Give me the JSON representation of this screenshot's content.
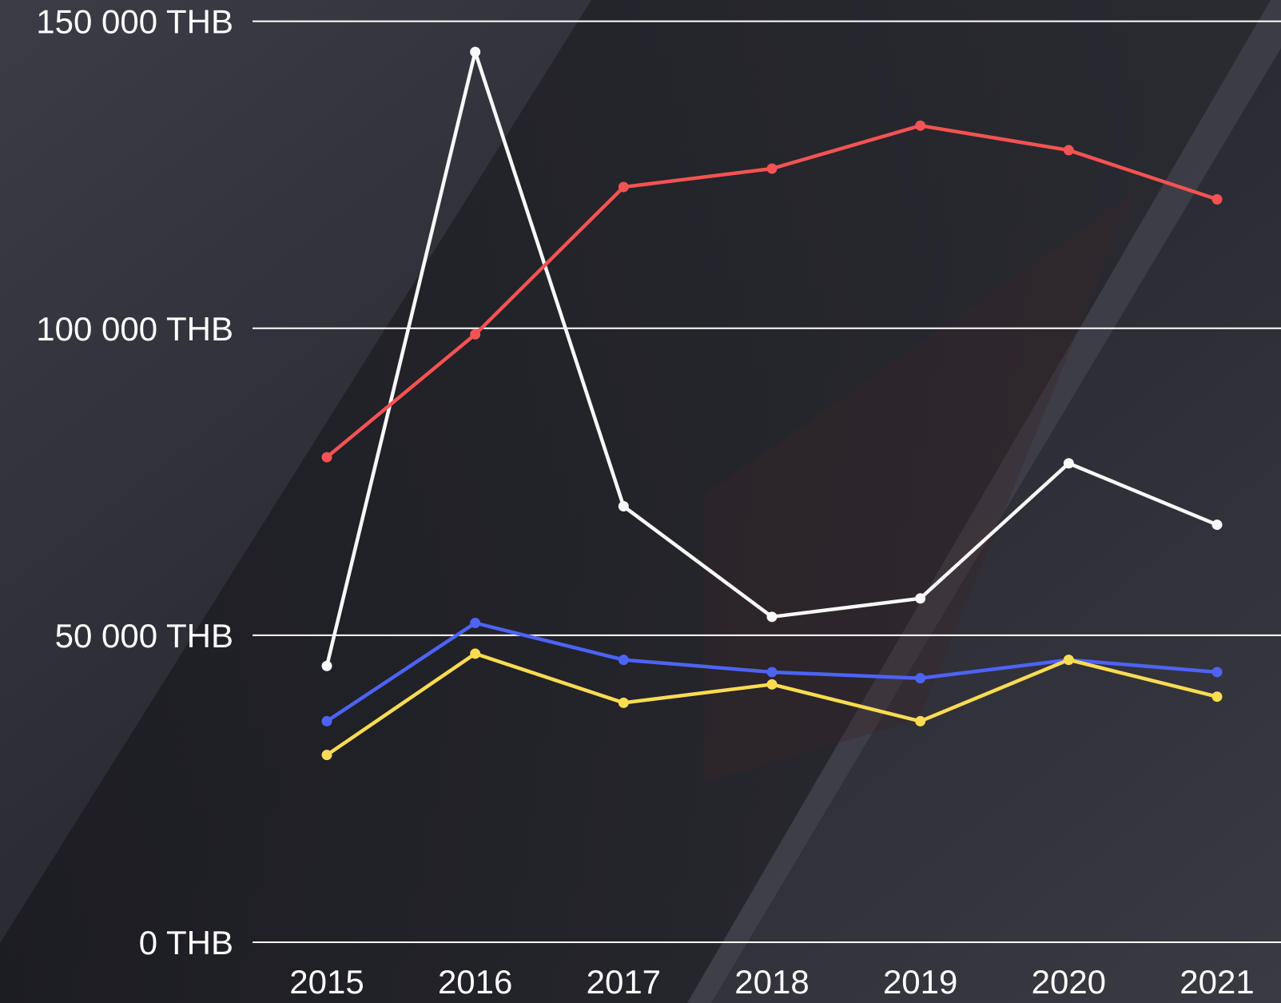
{
  "chart_data": {
    "type": "line",
    "categories": [
      "2015",
      "2016",
      "2017",
      "2018",
      "2019",
      "2020",
      "2021"
    ],
    "series": [
      {
        "color": "#f8f8f8",
        "values": [
          45000,
          145000,
          71000,
          53000,
          56000,
          78000,
          68000
        ]
      },
      {
        "color": "#f55252",
        "values": [
          79000,
          99000,
          123000,
          126000,
          133000,
          129000,
          121000
        ]
      },
      {
        "color": "#4d63f5",
        "values": [
          36000,
          52000,
          46000,
          44000,
          43000,
          46000,
          44000
        ]
      },
      {
        "color": "#fadb52",
        "values": [
          30500,
          47000,
          39000,
          42000,
          36000,
          46000,
          40000
        ]
      }
    ],
    "ylim": [
      0,
      150000
    ],
    "yticks": [
      {
        "value": 0,
        "label": "0 THB"
      },
      {
        "value": 50000,
        "label": "50 000 THB"
      },
      {
        "value": 100000,
        "label": "100 000 THB"
      },
      {
        "value": 150000,
        "label": "150 000 THB"
      }
    ],
    "grid": true
  }
}
